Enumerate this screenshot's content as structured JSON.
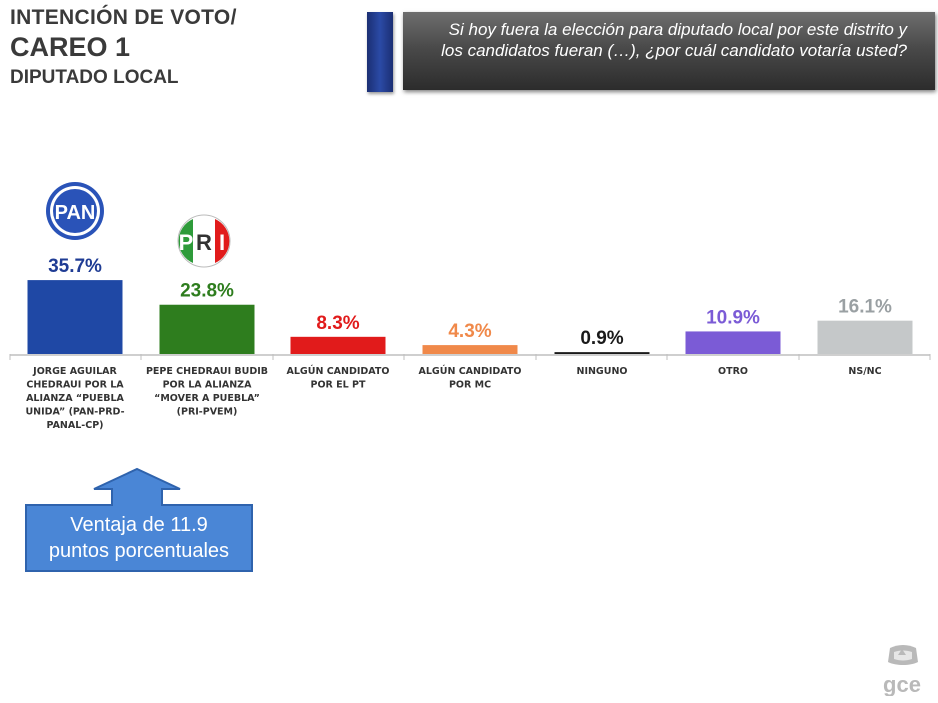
{
  "header": {
    "title_line1": "INTENCIÓN DE VOTO/",
    "title_line2": "CAREO 1",
    "title_line3": "DIPUTADO LOCAL",
    "question": "Si hoy fuera la elección para diputado local por este distrito y los candidatos fueran (…), ¿por cuál candidato votaría usted?"
  },
  "logos": {
    "pan": "PAN",
    "pri_letters": [
      "P",
      "R",
      "I"
    ],
    "gce": "GCE"
  },
  "callout": {
    "text_line1": "Ventaja de 11.9",
    "text_line2": "puntos porcentuales",
    "color": "#4a86d6"
  },
  "chart_data": {
    "type": "bar",
    "categories": [
      [
        "JORGE AGUILAR",
        "CHEDRAUI POR LA",
        "ALIANZA “PUEBLA",
        "UNIDA” (PAN-PRD-",
        "PANAL-CP)"
      ],
      [
        "PEPE CHEDRAUI BUDIB",
        "POR LA ALIANZA",
        "“MOVER A PUEBLA”",
        "(PRI-PVEM)"
      ],
      [
        "ALGÚN CANDIDATO",
        "POR EL PT"
      ],
      [
        "ALGÚN CANDIDATO",
        "POR MC"
      ],
      [
        "NINGUNO"
      ],
      [
        "OTRO"
      ],
      [
        "NS/NC"
      ]
    ],
    "values": [
      35.7,
      23.8,
      8.3,
      4.3,
      0.9,
      10.9,
      16.1
    ],
    "value_labels": [
      "35.7%",
      "23.8%",
      "8.3%",
      "4.3%",
      "0.9%",
      "10.9%",
      "16.1%"
    ],
    "colors": [
      "#1f48a5",
      "#2e7d1e",
      "#e11b1b",
      "#f0894a",
      "#1a1a1a",
      "#7b5bd6",
      "#c5c8c9"
    ],
    "label_colors": [
      "#1f3c94",
      "#2e7d1e",
      "#e11b1b",
      "#f0894a",
      "#1a1a1a",
      "#7b5bd6",
      "#9aa0a3"
    ],
    "title": "",
    "xlabel": "",
    "ylabel": "",
    "ylim": [
      0,
      40
    ],
    "grid": false
  }
}
